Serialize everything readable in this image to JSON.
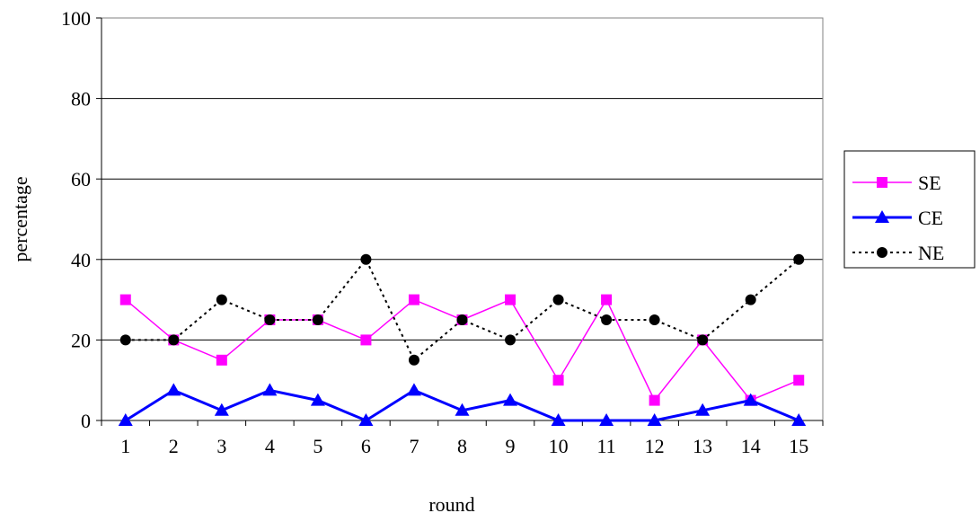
{
  "chart_data": {
    "type": "line",
    "title": "",
    "xlabel": "round",
    "ylabel": "percentage",
    "x": [
      1,
      2,
      3,
      4,
      5,
      6,
      7,
      8,
      9,
      10,
      11,
      12,
      13,
      14,
      15
    ],
    "ylim": [
      0,
      100
    ],
    "yticks": [
      0,
      20,
      40,
      60,
      80,
      100
    ],
    "grid": "horizontal",
    "legend": "right",
    "series": [
      {
        "name": "SE",
        "color": "#ff00ff",
        "marker": "square",
        "line": "solid",
        "values": [
          30,
          20,
          15,
          25,
          25,
          20,
          30,
          25,
          30,
          10,
          30,
          5,
          20,
          5,
          10
        ]
      },
      {
        "name": "CE",
        "color": "#0000ff",
        "marker": "triangle",
        "line": "solid-thick",
        "values": [
          0,
          7.5,
          2.5,
          7.5,
          5,
          0,
          7.5,
          2.5,
          5,
          0,
          0,
          0,
          2.5,
          5,
          0
        ]
      },
      {
        "name": "NE",
        "color": "#000000",
        "marker": "circle",
        "line": "dotted",
        "values": [
          20,
          20,
          30,
          25,
          25,
          40,
          15,
          25,
          20,
          30,
          25,
          25,
          20,
          30,
          40
        ]
      }
    ]
  }
}
